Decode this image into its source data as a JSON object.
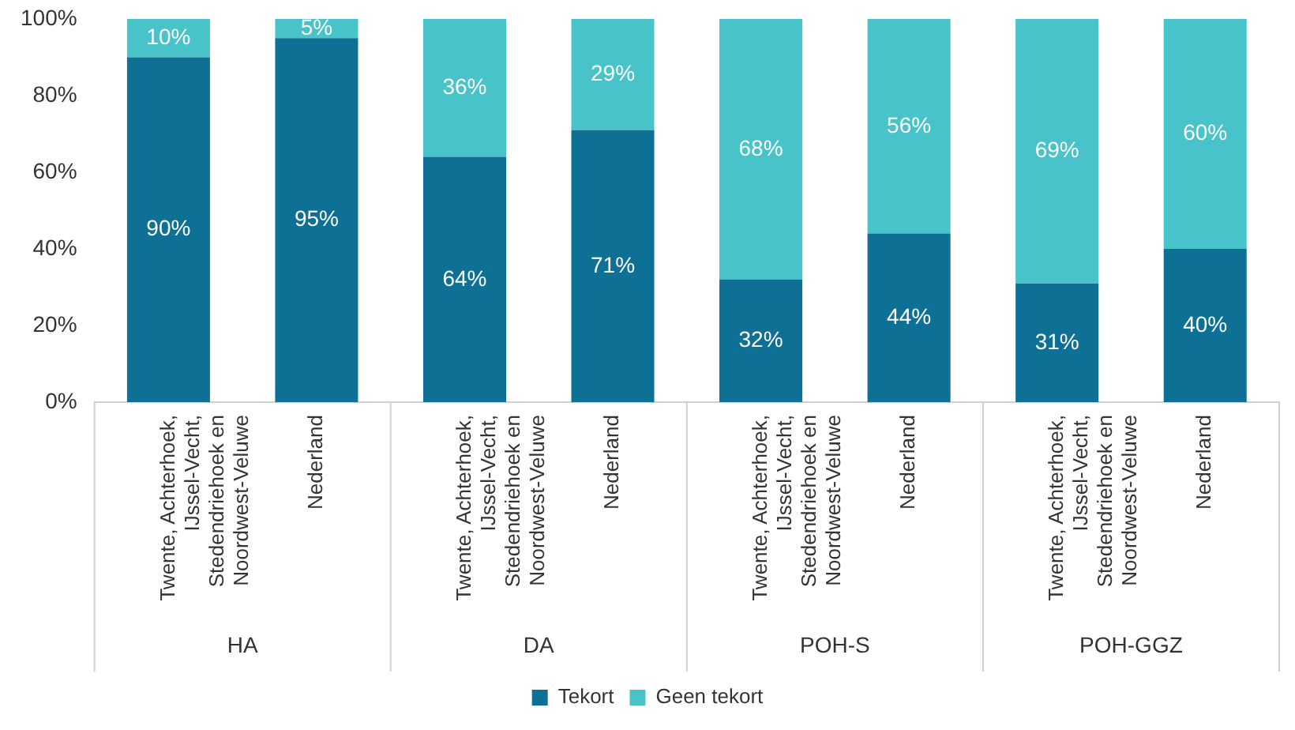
{
  "chart_data": {
    "type": "bar",
    "stacked": true,
    "categories": [
      "Twente, Achterhoek, IJssel-Vecht, Stedendriehoek en Noordwest-Veluwe",
      "Nederland",
      "Twente, Achterhoek, IJssel-Vecht, Stedendriehoek en Noordwest-Veluwe",
      "Nederland",
      "Twente, Achterhoek, IJssel-Vecht, Stedendriehoek en Noordwest-Veluwe",
      "Nederland",
      "Twente, Achterhoek, IJssel-Vecht, Stedendriehoek en Noordwest-Veluwe",
      "Nederland"
    ],
    "series": [
      {
        "name": "Tekort",
        "color": "#0f7096",
        "values": [
          90,
          95,
          64,
          71,
          32,
          44,
          31,
          40
        ],
        "value_labels": [
          "90%",
          "95%",
          "64%",
          "71%",
          "32%",
          "44%",
          "31%",
          "40%"
        ]
      },
      {
        "name": "Geen tekort",
        "color": "#47c3c9",
        "values": [
          10,
          5,
          36,
          29,
          68,
          56,
          69,
          60
        ],
        "value_labels": [
          "10%",
          "5%",
          "36%",
          "29%",
          "68%",
          "56%",
          "69%",
          "60%"
        ]
      }
    ],
    "annotations": [
      "HA",
      "DA",
      "POH-S",
      "POH-GGZ"
    ],
    "ylim": [
      0,
      100
    ],
    "yticks": [
      {
        "value": 0,
        "label": "0%"
      },
      {
        "value": 20,
        "label": "20%"
      },
      {
        "value": 40,
        "label": "40%"
      },
      {
        "value": 60,
        "label": "60%"
      },
      {
        "value": 80,
        "label": "80%"
      },
      {
        "value": 100,
        "label": "100%"
      }
    ],
    "grid": false,
    "legend": "bottom"
  }
}
